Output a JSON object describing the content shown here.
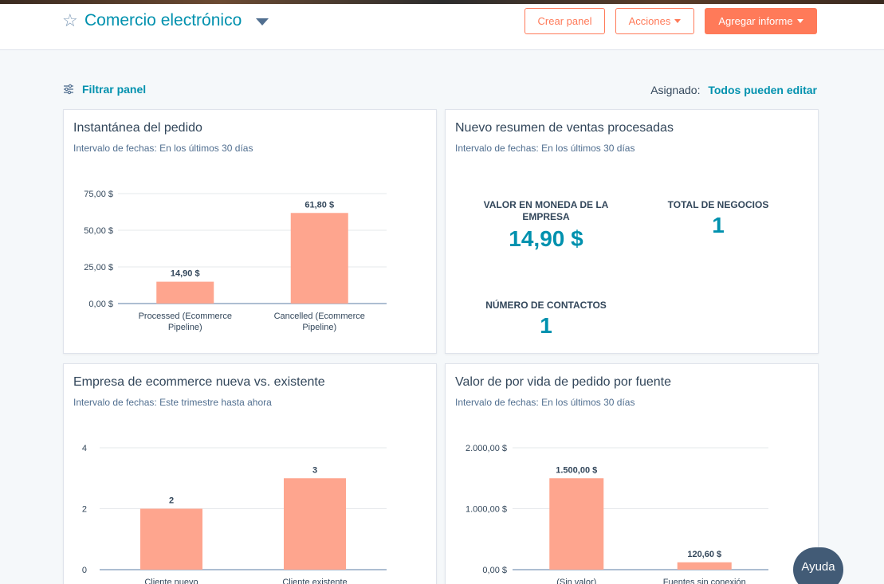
{
  "header": {
    "title": "Comercio electrónico",
    "buttons": {
      "create": "Crear panel",
      "actions": "Acciones",
      "add_report": "Agregar informe"
    }
  },
  "toolbar": {
    "filter_label": "Filtrar panel",
    "assigned_label": "Asignado:",
    "assigned_value": "Todos pueden editar"
  },
  "colors": {
    "accent": "#ff7a59",
    "link": "#0091ae",
    "bar": "#fea58e"
  },
  "cards": {
    "order_snapshot": {
      "title": "Instantánea del pedido",
      "subtitle": "Intervalo de fechas:  En los últimos 30 días"
    },
    "sales_summary": {
      "title": "Nuevo resumen de ventas procesadas",
      "subtitle": "Intervalo de fechas:  En los últimos 30 días",
      "kpis": {
        "company_value_label": "VALOR EN MONEDA DE LA EMPRESA",
        "company_value": "14,90 $",
        "deals_label": "TOTAL DE NEGOCIOS",
        "deals": "1",
        "contacts_label": "NÚMERO DE CONTACTOS",
        "contacts": "1"
      }
    },
    "new_vs_existing": {
      "title": "Empresa de ecommerce nueva vs. existente",
      "subtitle": "Intervalo de fechas:  Este trimestre hasta ahora"
    },
    "lifetime_value": {
      "title": "Valor de por vida de pedido por fuente",
      "subtitle": "Intervalo de fechas:  En los últimos 30 días"
    }
  },
  "help_button": "Ayuda",
  "chart_data": [
    {
      "type": "bar",
      "categories": [
        "Processed (Ecommerce Pipeline)",
        "Cancelled (Ecommerce Pipeline)"
      ],
      "category_lines": [
        [
          "Processed (Ecommerce",
          "Pipeline)"
        ],
        [
          "Cancelled (Ecommerce",
          "Pipeline)"
        ]
      ],
      "values": [
        14.9,
        61.8
      ],
      "value_labels": [
        "14,90 $",
        "61,80 $"
      ],
      "ylim": [
        0,
        75
      ],
      "yticks": [
        0,
        25,
        50,
        75
      ],
      "ytick_labels": [
        "0,00 $",
        "25,00 $",
        "50,00 $",
        "75,00 $"
      ],
      "grid": true
    },
    {
      "type": "bar",
      "categories": [
        "Cliente nuevo",
        "Cliente existente"
      ],
      "category_lines": [
        [
          "Cliente nuevo"
        ],
        [
          "Cliente existente"
        ]
      ],
      "values": [
        2,
        3
      ],
      "value_labels": [
        "2",
        "3"
      ],
      "ylim": [
        0,
        4
      ],
      "yticks": [
        0,
        2,
        4
      ],
      "ytick_labels": [
        "0",
        "2",
        "4"
      ],
      "grid": true
    },
    {
      "type": "bar",
      "categories": [
        "(Sin valor)",
        "Fuentes sin conexión"
      ],
      "category_lines": [
        [
          "(Sin valor)"
        ],
        [
          "Fuentes sin conexión"
        ]
      ],
      "values": [
        1500,
        120.6
      ],
      "value_labels": [
        "1.500,00 $",
        "120,60 $"
      ],
      "ylim": [
        0,
        2000
      ],
      "yticks": [
        0,
        1000,
        2000
      ],
      "ytick_labels": [
        "0,00 $",
        "1.000,00 $",
        "2.000,00 $"
      ],
      "grid": true
    }
  ]
}
